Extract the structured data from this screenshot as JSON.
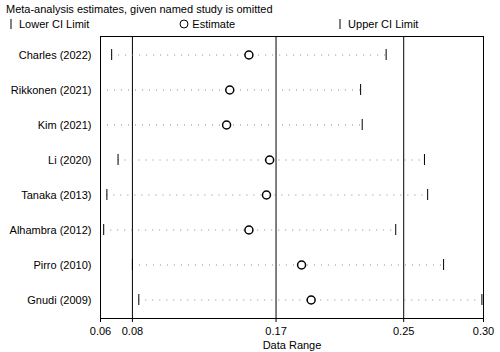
{
  "chart_data": {
    "type": "forest",
    "title": "Meta-analysis estimates, given named study is omitted",
    "legend_labels": {
      "lower": "Lower CI Limit",
      "estimate": "Estimate",
      "upper": "Upper CI Limit"
    },
    "x_label": "Data Range",
    "categories": [
      "Charles (2022)",
      "Rikkonen (2021)",
      "Kim (2021)",
      "Li (2020)",
      "Tanaka (2013)",
      "Alhambra (2012)",
      "Pirro (2010)",
      "Gnudi (2009)"
    ],
    "lower": [
      0.067,
      0.06,
      0.06,
      0.071,
      0.064,
      0.062,
      0.08,
      0.084
    ],
    "estimate": [
      0.153,
      0.141,
      0.139,
      0.166,
      0.164,
      0.153,
      0.186,
      0.192
    ],
    "upper": [
      0.239,
      0.223,
      0.224,
      0.263,
      0.265,
      0.245,
      0.275,
      0.299
    ],
    "overall": {
      "lower": 0.08,
      "estimate": 0.17,
      "upper": 0.25
    },
    "xlim": [
      0.06,
      0.3
    ],
    "xticks": [
      0.06,
      0.08,
      0.17,
      0.25,
      {
        "value": 0.3,
        "label": "0.30"
      }
    ]
  }
}
